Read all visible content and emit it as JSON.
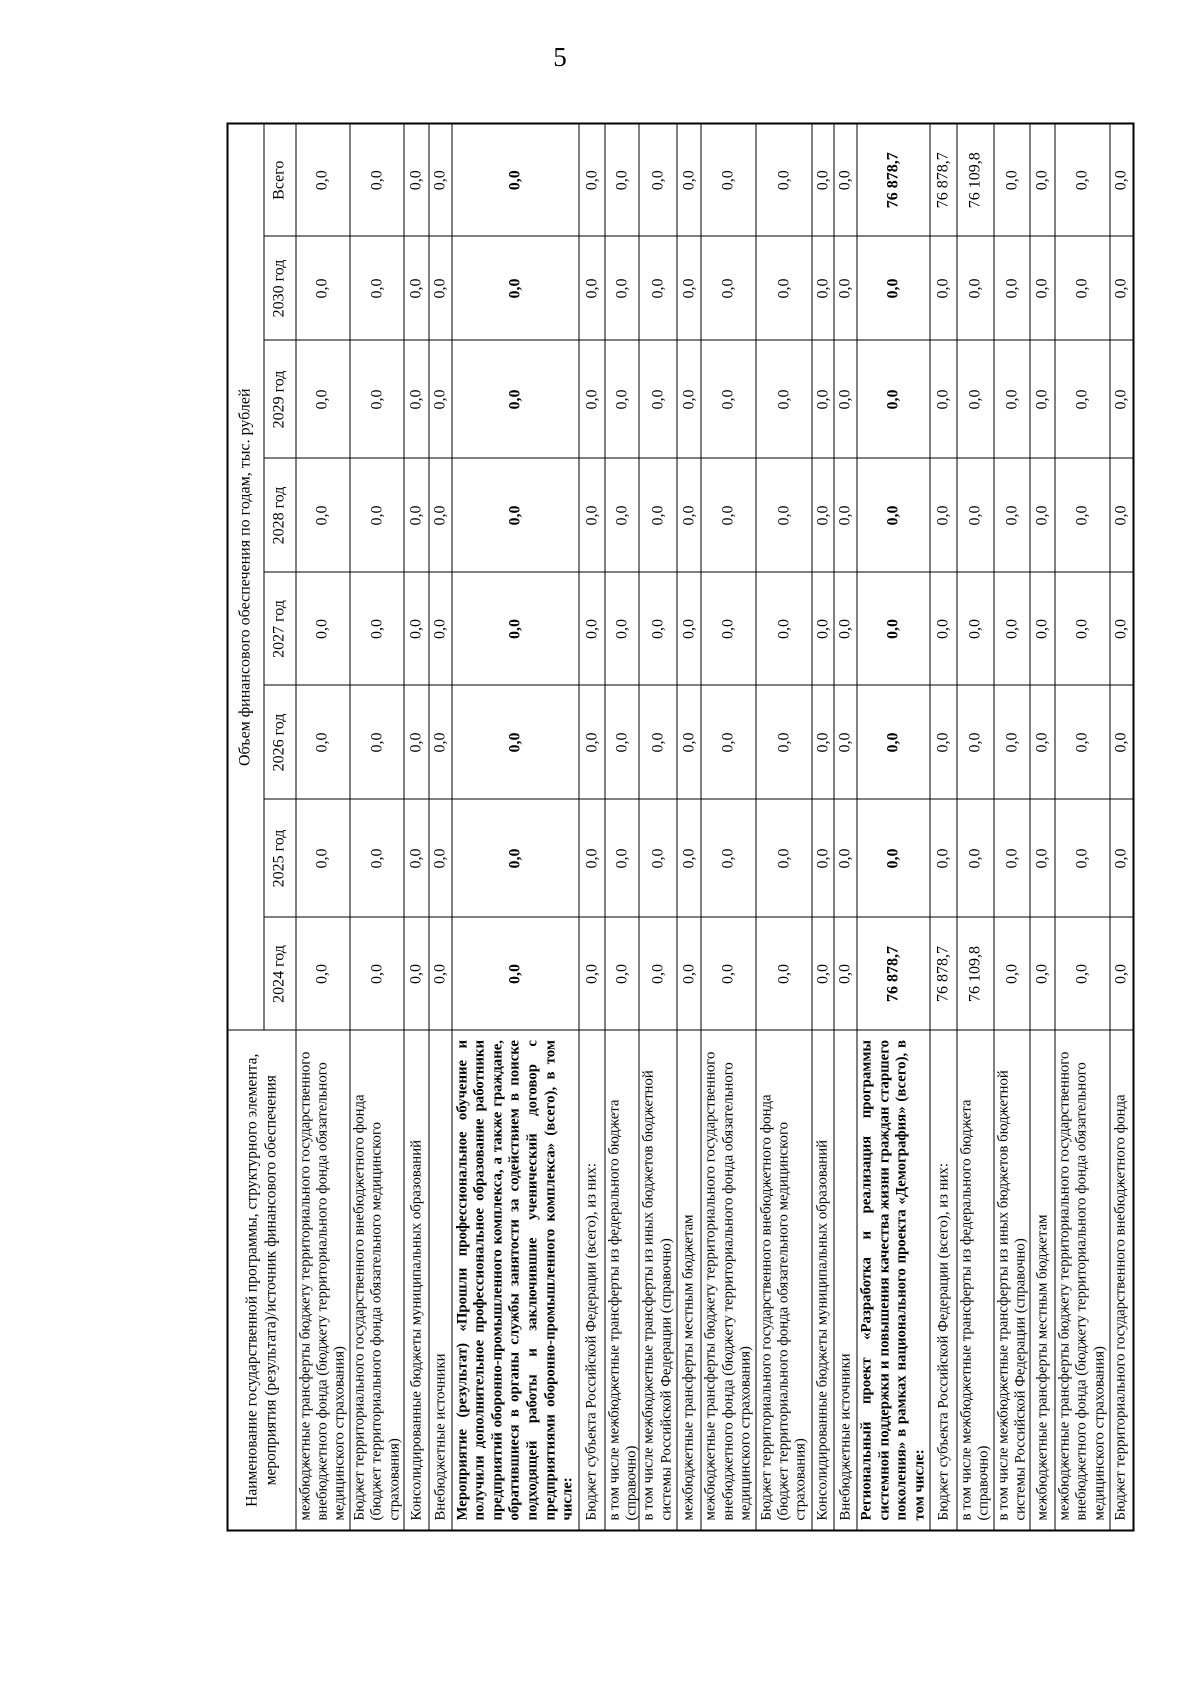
{
  "page": {
    "number": "5"
  },
  "table": {
    "header": {
      "name_column": "Наименование государственной программы, структурного элемента, мероприятия (результата)/источник финансового обеспечения",
      "group": "Объем финансового обеспечения по годам, тыс. рублей",
      "years": [
        "2024 год",
        "2025 год",
        "2026 год",
        "2027 год",
        "2028 год",
        "2029 год",
        "2030 год",
        "Всего"
      ]
    },
    "rows": [
      {
        "label": "межбюджетные трансферты бюджету территориального государственного внебюджетного фонда (бюджету территориального фонда обязательного медицинского страхования)",
        "bold": false,
        "values": [
          "0,0",
          "0,0",
          "0,0",
          "0,0",
          "0,0",
          "0,0",
          "0,0",
          "0,0"
        ]
      },
      {
        "label": "Бюджет территориального государственного внебюджетного фонда (бюджет территориального фонда обязательного медицинского страхования)",
        "bold": false,
        "values": [
          "0,0",
          "0,0",
          "0,0",
          "0,0",
          "0,0",
          "0,0",
          "0,0",
          "0,0"
        ]
      },
      {
        "label": "Консолидированные бюджеты муниципальных образований",
        "bold": false,
        "values": [
          "0,0",
          "0,0",
          "0,0",
          "0,0",
          "0,0",
          "0,0",
          "0,0",
          "0,0"
        ]
      },
      {
        "label": "Внебюджетные источники",
        "bold": false,
        "values": [
          "0,0",
          "0,0",
          "0,0",
          "0,0",
          "0,0",
          "0,0",
          "0,0",
          "0,0"
        ]
      },
      {
        "label": "Мероприятие (результат) «Прошли профессиональное обучение и получили дополнительное профессиональное образование работники предприятий оборонно-промышленного комплекса, а также граждане, обратившиеся в органы службы занятости за содействием в поиске подходящей работы и заключившие ученический договор с предприятиями оборонно-промышленного комплекса» (всего), в том числе:",
        "bold": true,
        "values": [
          "0,0",
          "0,0",
          "0,0",
          "0,0",
          "0,0",
          "0,0",
          "0,0",
          "0,0"
        ]
      },
      {
        "label": "Бюджет субъекта Российской Федерации (всего), из них:",
        "bold": false,
        "values": [
          "0,0",
          "0,0",
          "0,0",
          "0,0",
          "0,0",
          "0,0",
          "0,0",
          "0,0"
        ]
      },
      {
        "label": "в том числе межбюджетные трансферты из федерального бюджета (справочно)",
        "bold": false,
        "values": [
          "0,0",
          "0,0",
          "0,0",
          "0,0",
          "0,0",
          "0,0",
          "0,0",
          "0,0"
        ]
      },
      {
        "label": "в том числе межбюджетные трансферты из иных бюджетов бюджетной системы Российской Федерации (справочно)",
        "bold": false,
        "values": [
          "0,0",
          "0,0",
          "0,0",
          "0,0",
          "0,0",
          "0,0",
          "0,0",
          "0,0"
        ]
      },
      {
        "label": "межбюджетные трансферты местным бюджетам",
        "bold": false,
        "values": [
          "0,0",
          "0,0",
          "0,0",
          "0,0",
          "0,0",
          "0,0",
          "0,0",
          "0,0"
        ]
      },
      {
        "label": "межбюджетные трансферты бюджету территориального государственного внебюджетного фонда (бюджету территориального фонда обязательного медицинского страхования)",
        "bold": false,
        "values": [
          "0,0",
          "0,0",
          "0,0",
          "0,0",
          "0,0",
          "0,0",
          "0,0",
          "0,0"
        ]
      },
      {
        "label": "Бюджет территориального государственного внебюджетного фонда (бюджет территориального фонда обязательного медицинского страхования)",
        "bold": false,
        "values": [
          "0,0",
          "0,0",
          "0,0",
          "0,0",
          "0,0",
          "0,0",
          "0,0",
          "0,0"
        ]
      },
      {
        "label": "Консолидированные бюджеты муниципальных образований",
        "bold": false,
        "values": [
          "0,0",
          "0,0",
          "0,0",
          "0,0",
          "0,0",
          "0,0",
          "0,0",
          "0,0"
        ]
      },
      {
        "label": "Внебюджетные источники",
        "bold": false,
        "values": [
          "0,0",
          "0,0",
          "0,0",
          "0,0",
          "0,0",
          "0,0",
          "0,0",
          "0,0"
        ]
      },
      {
        "label": "Региональный проект «Разработка и реализация программы системной поддержки и повышения качества жизни граждан старшего поколения» в рамках национального проекта «Демография» (всего), в том числе:",
        "bold": true,
        "values": [
          "76 878,7",
          "0,0",
          "0,0",
          "0,0",
          "0,0",
          "0,0",
          "0,0",
          "76 878,7"
        ]
      },
      {
        "label": "Бюджет субъекта Российской Федерации (всего), из них:",
        "bold": false,
        "values": [
          "76 878,7",
          "0,0",
          "0,0",
          "0,0",
          "0,0",
          "0,0",
          "0,0",
          "76 878,7"
        ]
      },
      {
        "label": "в том числе межбюджетные трансферты из федерального бюджета (справочно)",
        "bold": false,
        "values": [
          "76 109,8",
          "0,0",
          "0,0",
          "0,0",
          "0,0",
          "0,0",
          "0,0",
          "76 109,8"
        ]
      },
      {
        "label": "в том числе межбюджетные трансферты из иных бюджетов бюджетной системы Российской Федерации (справочно)",
        "bold": false,
        "values": [
          "0,0",
          "0,0",
          "0,0",
          "0,0",
          "0,0",
          "0,0",
          "0,0",
          "0,0"
        ]
      },
      {
        "label": "межбюджетные трансферты местным бюджетам",
        "bold": false,
        "values": [
          "0,0",
          "0,0",
          "0,0",
          "0,0",
          "0,0",
          "0,0",
          "0,0",
          "0,0"
        ]
      },
      {
        "label": "межбюджетные трансферты бюджету территориального государственного внебюджетного фонда (бюджету территориального фонда обязательного медицинского страхования)",
        "bold": false,
        "values": [
          "0,0",
          "0,0",
          "0,0",
          "0,0",
          "0,0",
          "0,0",
          "0,0",
          "0,0"
        ]
      },
      {
        "label": "Бюджет территориального государственного внебюджетного фонда",
        "bold": false,
        "values": [
          "0,0",
          "0,0",
          "0,0",
          "0,0",
          "0,0",
          "0,0",
          "0,0",
          "0,0"
        ]
      }
    ]
  }
}
